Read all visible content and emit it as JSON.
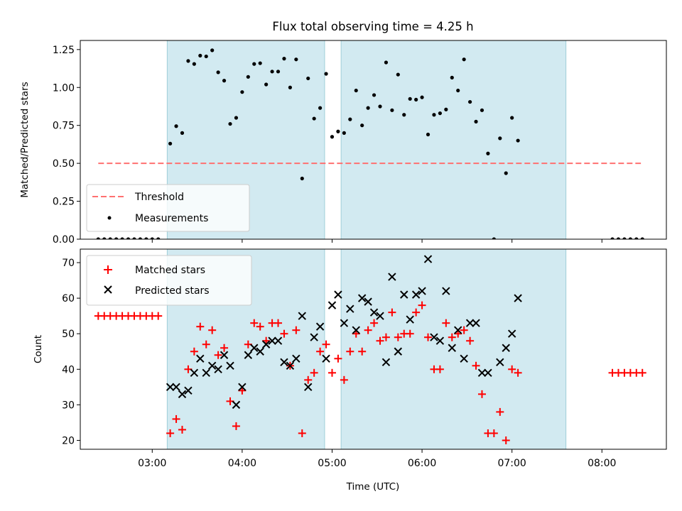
{
  "chart_data": [
    {
      "type": "scatter",
      "title": "Flux total observing time = 4.25 h",
      "xlabel": "",
      "ylabel": "Matched/Predicted stars",
      "xlim": [
        "02:12",
        "08:43"
      ],
      "ylim": [
        0,
        1.31
      ],
      "yticks": [
        "0.00",
        "0.25",
        "0.50",
        "0.75",
        "1.00",
        "1.25"
      ],
      "shaded_intervals": [
        [
          "03:10",
          "04:55"
        ],
        [
          "05:06",
          "07:36"
        ]
      ],
      "shade_color": "#add8e6",
      "threshold": {
        "name": "Threshold",
        "value": 0.5,
        "x_range": [
          "02:24",
          "08:26"
        ],
        "color": "#ff7070"
      },
      "legend": {
        "placement": "lower-left",
        "entries": [
          "Threshold",
          "Measurements"
        ]
      },
      "series": [
        {
          "name": "Measurements",
          "color": "#000000",
          "points": [
            [
              "02:24",
              0
            ],
            [
              "02:28",
              0
            ],
            [
              "02:32",
              0
            ],
            [
              "02:36",
              0
            ],
            [
              "02:40",
              0
            ],
            [
              "02:44",
              0
            ],
            [
              "02:48",
              0
            ],
            [
              "02:52",
              0
            ],
            [
              "02:56",
              0
            ],
            [
              "03:00",
              0
            ],
            [
              "03:04",
              0
            ],
            [
              "03:12",
              0.63
            ],
            [
              "03:16",
              0.745
            ],
            [
              "03:20",
              0.7
            ],
            [
              "03:24",
              1.175
            ],
            [
              "03:28",
              1.155
            ],
            [
              "03:32",
              1.21
            ],
            [
              "03:36",
              1.205
            ],
            [
              "03:40",
              1.245
            ],
            [
              "03:44",
              1.1
            ],
            [
              "03:48",
              1.045
            ],
            [
              "03:52",
              0.76
            ],
            [
              "03:56",
              0.8
            ],
            [
              "04:00",
              0.97
            ],
            [
              "04:04",
              1.07
            ],
            [
              "04:08",
              1.155
            ],
            [
              "04:12",
              1.16
            ],
            [
              "04:16",
              1.02
            ],
            [
              "04:20",
              1.105
            ],
            [
              "04:24",
              1.105
            ],
            [
              "04:28",
              1.19
            ],
            [
              "04:32",
              1.0
            ],
            [
              "04:36",
              1.185
            ],
            [
              "04:40",
              0.4
            ],
            [
              "04:44",
              1.06
            ],
            [
              "04:48",
              0.795
            ],
            [
              "04:52",
              0.865
            ],
            [
              "04:56",
              1.09
            ],
            [
              "05:00",
              0.675
            ],
            [
              "05:04",
              0.71
            ],
            [
              "05:08",
              0.7
            ],
            [
              "05:12",
              0.79
            ],
            [
              "05:16",
              0.98
            ],
            [
              "05:20",
              0.75
            ],
            [
              "05:24",
              0.865
            ],
            [
              "05:28",
              0.95
            ],
            [
              "05:32",
              0.875
            ],
            [
              "05:36",
              1.165
            ],
            [
              "05:40",
              0.85
            ],
            [
              "05:44",
              1.085
            ],
            [
              "05:48",
              0.82
            ],
            [
              "05:52",
              0.925
            ],
            [
              "05:56",
              0.92
            ],
            [
              "06:00",
              0.935
            ],
            [
              "06:04",
              0.69
            ],
            [
              "06:08",
              0.82
            ],
            [
              "06:12",
              0.83
            ],
            [
              "06:16",
              0.855
            ],
            [
              "06:20",
              1.065
            ],
            [
              "06:24",
              0.98
            ],
            [
              "06:28",
              1.185
            ],
            [
              "06:32",
              0.905
            ],
            [
              "06:36",
              0.775
            ],
            [
              "06:40",
              0.85
            ],
            [
              "06:44",
              0.565
            ],
            [
              "06:48",
              0
            ],
            [
              "06:52",
              0.665
            ],
            [
              "06:56",
              0.435
            ],
            [
              "07:00",
              0.8
            ],
            [
              "07:04",
              0.65
            ],
            [
              "08:07",
              0
            ],
            [
              "08:11",
              0
            ],
            [
              "08:15",
              0
            ],
            [
              "08:19",
              0
            ],
            [
              "08:23",
              0
            ],
            [
              "08:27",
              0
            ]
          ]
        }
      ]
    },
    {
      "type": "scatter",
      "title": "",
      "xlabel": "Time (UTC)",
      "ylabel": "Count",
      "xlim": [
        "02:12",
        "08:43"
      ],
      "ylim": [
        17.5,
        73.8
      ],
      "xticks": [
        "03:00",
        "04:00",
        "05:00",
        "06:00",
        "07:00",
        "08:00"
      ],
      "yticks": [
        "20",
        "30",
        "40",
        "50",
        "60",
        "70"
      ],
      "shaded_intervals": [
        [
          "03:10",
          "04:55"
        ],
        [
          "05:06",
          "07:36"
        ]
      ],
      "shade_color": "#add8e6",
      "legend": {
        "placement": "top-left",
        "entries": [
          "Matched stars",
          "Predicted stars"
        ]
      },
      "series": [
        {
          "name": "Matched stars",
          "marker": "+",
          "color": "#ff0000",
          "points": [
            [
              "02:24",
              55
            ],
            [
              "02:28",
              55
            ],
            [
              "02:32",
              55
            ],
            [
              "02:36",
              55
            ],
            [
              "02:40",
              55
            ],
            [
              "02:44",
              55
            ],
            [
              "02:48",
              55
            ],
            [
              "02:52",
              55
            ],
            [
              "02:56",
              55
            ],
            [
              "03:00",
              55
            ],
            [
              "03:04",
              55
            ],
            [
              "03:12",
              22
            ],
            [
              "03:16",
              26
            ],
            [
              "03:20",
              23
            ],
            [
              "03:24",
              40
            ],
            [
              "03:28",
              45
            ],
            [
              "03:32",
              52
            ],
            [
              "03:36",
              47
            ],
            [
              "03:40",
              51
            ],
            [
              "03:44",
              44
            ],
            [
              "03:48",
              46
            ],
            [
              "03:52",
              31
            ],
            [
              "03:56",
              24
            ],
            [
              "04:00",
              34
            ],
            [
              "04:04",
              47
            ],
            [
              "04:08",
              53
            ],
            [
              "04:12",
              52
            ],
            [
              "04:16",
              48
            ],
            [
              "04:20",
              53
            ],
            [
              "04:24",
              53
            ],
            [
              "04:28",
              50
            ],
            [
              "04:32",
              41
            ],
            [
              "04:36",
              51
            ],
            [
              "04:40",
              22
            ],
            [
              "04:44",
              37
            ],
            [
              "04:48",
              39
            ],
            [
              "04:52",
              45
            ],
            [
              "04:56",
              47
            ],
            [
              "05:00",
              39
            ],
            [
              "05:04",
              43
            ],
            [
              "05:08",
              37
            ],
            [
              "05:12",
              45
            ],
            [
              "05:16",
              50
            ],
            [
              "05:20",
              45
            ],
            [
              "05:24",
              51
            ],
            [
              "05:28",
              53
            ],
            [
              "05:32",
              48
            ],
            [
              "05:36",
              49
            ],
            [
              "05:40",
              56
            ],
            [
              "05:44",
              49
            ],
            [
              "05:48",
              50
            ],
            [
              "05:52",
              50
            ],
            [
              "05:56",
              56
            ],
            [
              "06:00",
              58
            ],
            [
              "06:04",
              49
            ],
            [
              "06:08",
              40
            ],
            [
              "06:12",
              40
            ],
            [
              "06:16",
              53
            ],
            [
              "06:20",
              49
            ],
            [
              "06:24",
              50
            ],
            [
              "06:28",
              51
            ],
            [
              "06:32",
              48
            ],
            [
              "06:36",
              41
            ],
            [
              "06:40",
              33
            ],
            [
              "06:44",
              22
            ],
            [
              "06:48",
              22
            ],
            [
              "06:52",
              28
            ],
            [
              "06:56",
              20
            ],
            [
              "07:00",
              40
            ],
            [
              "07:04",
              39
            ],
            [
              "08:07",
              39
            ],
            [
              "08:11",
              39
            ],
            [
              "08:15",
              39
            ],
            [
              "08:19",
              39
            ],
            [
              "08:23",
              39
            ],
            [
              "08:27",
              39
            ]
          ]
        },
        {
          "name": "Predicted stars",
          "marker": "x",
          "color": "#000000",
          "points": [
            [
              "03:12",
              35
            ],
            [
              "03:16",
              35
            ],
            [
              "03:20",
              33
            ],
            [
              "03:24",
              34
            ],
            [
              "03:28",
              39
            ],
            [
              "03:32",
              43
            ],
            [
              "03:36",
              39
            ],
            [
              "03:40",
              41
            ],
            [
              "03:44",
              40
            ],
            [
              "03:48",
              44
            ],
            [
              "03:52",
              41
            ],
            [
              "03:56",
              30
            ],
            [
              "04:00",
              35
            ],
            [
              "04:04",
              44
            ],
            [
              "04:08",
              46
            ],
            [
              "04:12",
              45
            ],
            [
              "04:16",
              47
            ],
            [
              "04:20",
              48
            ],
            [
              "04:24",
              48
            ],
            [
              "04:28",
              42
            ],
            [
              "04:32",
              41
            ],
            [
              "04:36",
              43
            ],
            [
              "04:40",
              55
            ],
            [
              "04:44",
              35
            ],
            [
              "04:48",
              49
            ],
            [
              "04:52",
              52
            ],
            [
              "04:56",
              43
            ],
            [
              "05:00",
              58
            ],
            [
              "05:04",
              61
            ],
            [
              "05:08",
              53
            ],
            [
              "05:12",
              57
            ],
            [
              "05:16",
              51
            ],
            [
              "05:20",
              60
            ],
            [
              "05:24",
              59
            ],
            [
              "05:28",
              56
            ],
            [
              "05:32",
              55
            ],
            [
              "05:36",
              42
            ],
            [
              "05:40",
              66
            ],
            [
              "05:44",
              45
            ],
            [
              "05:48",
              61
            ],
            [
              "05:52",
              54
            ],
            [
              "05:56",
              61
            ],
            [
              "06:00",
              62
            ],
            [
              "06:04",
              71
            ],
            [
              "06:08",
              49
            ],
            [
              "06:12",
              48
            ],
            [
              "06:16",
              62
            ],
            [
              "06:20",
              46
            ],
            [
              "06:24",
              51
            ],
            [
              "06:28",
              43
            ],
            [
              "06:32",
              53
            ],
            [
              "06:36",
              53
            ],
            [
              "06:40",
              39
            ],
            [
              "06:44",
              39
            ],
            [
              "06:52",
              42
            ],
            [
              "06:56",
              46
            ],
            [
              "07:00",
              50
            ],
            [
              "07:04",
              60
            ]
          ]
        }
      ]
    }
  ]
}
